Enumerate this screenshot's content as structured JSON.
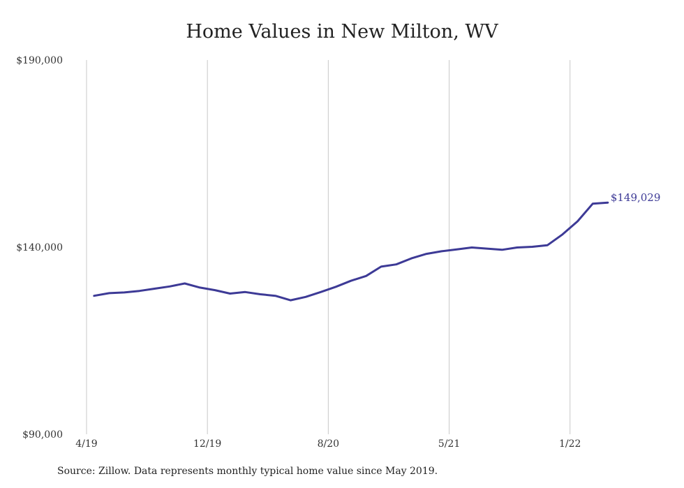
{
  "chart_data": {
    "type": "line",
    "title": "Home Values in New Milton, WV",
    "source": "Source: Zillow. Data represents monthly typical home value since May 2019.",
    "ylim": [
      90000,
      190000
    ],
    "yticks": [
      90000,
      140000,
      190000
    ],
    "ytick_labels": [
      "$90,000",
      "$140,000",
      "$190,000"
    ],
    "xtick_labels": [
      "4/19",
      "12/19",
      "8/20",
      "5/21",
      "1/22"
    ],
    "xtick_positions": [
      0,
      8,
      16,
      24,
      32
    ],
    "grid": {
      "vertical": true,
      "horizontal": false
    },
    "line_color": "#3d3a96",
    "end_label": "$149,029",
    "series": [
      {
        "x": [
          0.5,
          1.5,
          2.5,
          3.5,
          4.5,
          5.5,
          6.5,
          7.5,
          8.5,
          9.5,
          10.5,
          11.5,
          12.5,
          13.5,
          14.5,
          15.5,
          16.5,
          17.5,
          18.5,
          19.5,
          20.5,
          21.5,
          22.5,
          23.5,
          24.5,
          25.5,
          26.5,
          27.5,
          28.5,
          29.5,
          30.5,
          31.5,
          32.5,
          33.5,
          34.5
        ],
        "values": [
          127000,
          127700,
          127900,
          128300,
          128900,
          129500,
          130300,
          129200,
          128500,
          127600,
          128000,
          127400,
          127000,
          125800,
          126700,
          128000,
          129400,
          131000,
          132300,
          134800,
          135400,
          137000,
          138200,
          138900,
          139400,
          139900,
          139600,
          139300,
          139900,
          140100,
          140500,
          143400,
          146900,
          151600,
          151900
        ]
      }
    ]
  }
}
